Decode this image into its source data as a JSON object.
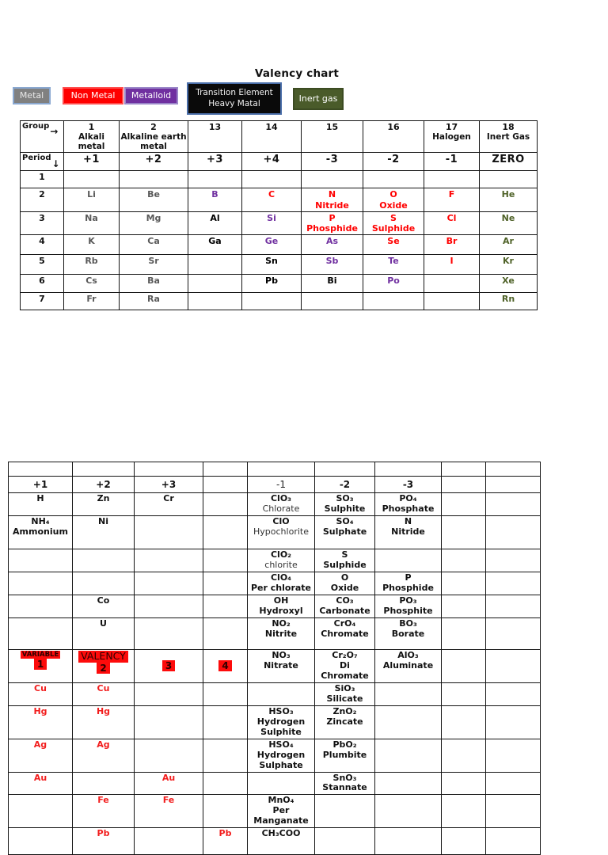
{
  "title": "Valency chart",
  "legend": [
    {
      "label": "Metal",
      "bg": "#808080",
      "fg": "#e8e8e8",
      "border": "#8aa8d0"
    },
    {
      "label": "Non Metal",
      "bg": "#ff0000",
      "fg": "#ffffff",
      "border": "#ff4d4d"
    },
    {
      "label": "Metalloid",
      "bg": "#7030a0",
      "fg": "#ffffff",
      "border": "#9a86c8"
    },
    {
      "label": "Transition Element\nHeavy Matal",
      "bg": "#0a0a0a",
      "fg": "#f2f2f2",
      "border": "#4a6ea9"
    },
    {
      "label": "Inert gas",
      "bg": "#4a5b2a",
      "fg": "#ffffff",
      "border": "#3c4b22"
    }
  ],
  "element_colors": {
    "metal": "#595959",
    "heavy": "#000000",
    "metalloid": "#7030a0",
    "nonmetal": "#ff0000",
    "inert": "#4f6228"
  },
  "table1": {
    "corner": {
      "group_label": "Group",
      "group_arrow": "→",
      "period_label": "Period",
      "period_arrow": "↓"
    },
    "groups": [
      {
        "num": "1",
        "sub": "Alkali metal",
        "valency": "+1"
      },
      {
        "num": "2",
        "sub": "Alkaline earth metal",
        "valency": "+2"
      },
      {
        "num": "13",
        "sub": "",
        "valency": "+3"
      },
      {
        "num": "14",
        "sub": "",
        "valency": "+4"
      },
      {
        "num": "15",
        "sub": "",
        "valency": "-3"
      },
      {
        "num": "16",
        "sub": "",
        "valency": "-2"
      },
      {
        "num": "17",
        "sub": "Halogen",
        "valency": "-1"
      },
      {
        "num": "18",
        "sub": "Inert Gas",
        "valency": "ZERO"
      }
    ],
    "periods": [
      {
        "period": "1",
        "cells": [
          null,
          null,
          null,
          null,
          null,
          null,
          null,
          null
        ]
      },
      {
        "period": "2",
        "cells": [
          {
            "t": "Li",
            "c": "metal"
          },
          {
            "t": "Be",
            "c": "metal"
          },
          {
            "t": "B",
            "c": "metalloid"
          },
          {
            "t": "C",
            "c": "nonmetal"
          },
          {
            "t": "N",
            "t2": "Nitride",
            "c": "nonmetal"
          },
          {
            "t": "O",
            "t2": "Oxide",
            "c": "nonmetal"
          },
          {
            "t": "F",
            "c": "nonmetal"
          },
          {
            "t": "He",
            "c": "inert"
          }
        ]
      },
      {
        "period": "3",
        "cells": [
          {
            "t": "Na",
            "c": "metal"
          },
          {
            "t": "Mg",
            "c": "metal"
          },
          {
            "t": "Al",
            "c": "heavy"
          },
          {
            "t": "Si",
            "c": "metalloid"
          },
          {
            "t": "P",
            "t2": "Phosphide",
            "c": "nonmetal"
          },
          {
            "t": "S",
            "t2": "Sulphide",
            "c": "nonmetal"
          },
          {
            "t": "Cl",
            "c": "nonmetal"
          },
          {
            "t": "Ne",
            "c": "inert"
          }
        ]
      },
      {
        "period": "4",
        "cells": [
          {
            "t": "K",
            "c": "metal"
          },
          {
            "t": "Ca",
            "c": "metal"
          },
          {
            "t": "Ga",
            "c": "heavy"
          },
          {
            "t": "Ge",
            "c": "metalloid"
          },
          {
            "t": "As",
            "c": "metalloid"
          },
          {
            "t": "Se",
            "c": "nonmetal"
          },
          {
            "t": "Br",
            "c": "nonmetal"
          },
          {
            "t": "Ar",
            "c": "inert"
          }
        ]
      },
      {
        "period": "5",
        "cells": [
          {
            "t": "Rb",
            "c": "metal"
          },
          {
            "t": "Sr",
            "c": "metal"
          },
          null,
          {
            "t": "Sn",
            "c": "heavy"
          },
          {
            "t": "Sb",
            "c": "metalloid"
          },
          {
            "t": "Te",
            "c": "metalloid"
          },
          {
            "t": "I",
            "c": "nonmetal"
          },
          {
            "t": "Kr",
            "c": "inert"
          }
        ]
      },
      {
        "period": "6",
        "cells": [
          {
            "t": "Cs",
            "c": "metal"
          },
          {
            "t": "Ba",
            "c": "metal"
          },
          null,
          {
            "t": "Pb",
            "c": "heavy"
          },
          {
            "t": "Bi",
            "c": "heavy"
          },
          {
            "t": "Po",
            "c": "metalloid"
          },
          null,
          {
            "t": "Xe",
            "c": "inert"
          }
        ]
      },
      {
        "period": "7",
        "cells": [
          {
            "t": "Fr",
            "c": "metal"
          },
          {
            "t": "Ra",
            "c": "metal"
          },
          null,
          null,
          null,
          null,
          null,
          {
            "t": "Rn",
            "c": "inert"
          }
        ]
      }
    ]
  },
  "table2": {
    "headers": [
      {
        "t": "+1",
        "bold": true
      },
      {
        "t": "+2",
        "bold": true
      },
      {
        "t": "+3",
        "bold": true
      },
      {
        "t": "",
        "bold": true
      },
      {
        "t": "-1",
        "bold": false
      },
      {
        "t": "-2",
        "bold": true
      },
      {
        "t": "-3",
        "bold": true
      },
      {
        "t": "",
        "bold": true
      },
      {
        "t": "",
        "bold": true
      }
    ],
    "rows": [
      [
        [
          [
            "H",
            "b"
          ]
        ],
        [
          [
            "Zn",
            "b"
          ]
        ],
        [
          [
            "Cr",
            "b"
          ]
        ],
        null,
        [
          [
            "ClO₃",
            "b"
          ],
          [
            "Chlorate",
            "r"
          ]
        ],
        [
          [
            "SO₃",
            "b"
          ],
          [
            "Sulphite",
            "b"
          ]
        ],
        [
          [
            "PO₄",
            "b"
          ],
          [
            "Phosphate",
            "b"
          ]
        ],
        null,
        null
      ],
      [
        [
          [
            "NH₄",
            "b"
          ],
          [
            "Ammonium",
            "b"
          ]
        ],
        [
          [
            "Ni",
            "b"
          ]
        ],
        null,
        null,
        [
          [
            "ClO",
            "b"
          ],
          [
            "Hypochlorite",
            "r"
          ]
        ],
        [
          [
            "SO₄",
            "b"
          ],
          [
            "Sulphate",
            "b"
          ]
        ],
        [
          [
            "N",
            "b"
          ],
          [
            "Nitride",
            "b"
          ]
        ],
        null,
        null
      ],
      [
        null,
        null,
        null,
        null,
        [
          [
            "ClO₂",
            "b"
          ],
          [
            "chlorite",
            "r"
          ]
        ],
        [
          [
            "S",
            "b"
          ],
          [
            "Sulphide",
            "b"
          ]
        ],
        null,
        null,
        null
      ],
      [
        null,
        null,
        null,
        null,
        [
          [
            "ClO₄",
            "b"
          ],
          [
            "Per chlorate",
            "b"
          ]
        ],
        [
          [
            "O",
            "b"
          ],
          [
            "Oxide",
            "b"
          ]
        ],
        [
          [
            "P",
            "b"
          ],
          [
            "Phosphide",
            "b"
          ]
        ],
        null,
        null
      ],
      [
        null,
        [
          [
            "Co",
            "b"
          ]
        ],
        null,
        null,
        [
          [
            "OH",
            "b"
          ],
          [
            "Hydroxyl",
            "b"
          ]
        ],
        [
          [
            "CO₃",
            "b"
          ],
          [
            "Carbonate",
            "b"
          ]
        ],
        [
          [
            "PO₃",
            "b"
          ],
          [
            "Phosphite",
            "b"
          ]
        ],
        null,
        null
      ],
      [
        null,
        [
          [
            "U",
            "b"
          ]
        ],
        null,
        null,
        [
          [
            "NO₂",
            "b"
          ],
          [
            "Nitrite",
            "b"
          ]
        ],
        [
          [
            "CrO₄",
            "b"
          ],
          [
            "Chromate",
            "b"
          ]
        ],
        [
          [
            "BO₃",
            "b"
          ],
          [
            "Borate",
            "b"
          ]
        ],
        null,
        null
      ],
      [
        [
          [
            "VARIABLE",
            "hs"
          ],
          [
            "1",
            "h"
          ]
        ],
        [
          [
            "VALENCY",
            "hv"
          ],
          [
            "2",
            "h"
          ]
        ],
        [
          [
            "3",
            "h"
          ]
        ],
        [
          [
            "4",
            "h"
          ]
        ],
        [
          [
            "NO₃",
            "b"
          ],
          [
            "Nitrate",
            "b"
          ]
        ],
        [
          [
            "Cr₂O₇",
            "b"
          ],
          [
            "Di",
            "b"
          ],
          [
            "Chromate",
            "b"
          ]
        ],
        [
          [
            "AlO₃",
            "b"
          ],
          [
            "Aluminate",
            "b"
          ]
        ],
        null,
        null
      ],
      [
        [
          [
            "Cu",
            "e"
          ]
        ],
        [
          [
            "Cu",
            "e"
          ]
        ],
        null,
        null,
        null,
        [
          [
            "SiO₃",
            "b"
          ],
          [
            "Silicate",
            "b"
          ]
        ],
        null,
        null,
        null
      ],
      [
        [
          [
            "Hg",
            "e"
          ]
        ],
        [
          [
            "Hg",
            "e"
          ]
        ],
        null,
        null,
        [
          [
            "HSO₃",
            "b"
          ],
          [
            "Hydrogen",
            "b"
          ],
          [
            "Sulphite",
            "b"
          ]
        ],
        [
          [
            "ZnO₂",
            "b"
          ],
          [
            "Zincate",
            "b"
          ]
        ],
        null,
        null,
        null
      ],
      [
        [
          [
            "Ag",
            "e"
          ]
        ],
        [
          [
            "Ag",
            "e"
          ]
        ],
        null,
        null,
        [
          [
            "HSO₄",
            "b"
          ],
          [
            "Hydrogen",
            "b"
          ],
          [
            "Sulphate",
            "b"
          ]
        ],
        [
          [
            "PbO₂",
            "b"
          ],
          [
            "Plumbite",
            "b"
          ]
        ],
        null,
        null,
        null
      ],
      [
        [
          [
            "Au",
            "e"
          ]
        ],
        null,
        [
          [
            "Au",
            "e"
          ]
        ],
        null,
        null,
        [
          [
            "SnO₃",
            "b"
          ],
          [
            "Stannate",
            "b"
          ]
        ],
        null,
        null,
        null
      ],
      [
        null,
        [
          [
            "Fe",
            "e"
          ]
        ],
        [
          [
            "Fe",
            "e"
          ]
        ],
        null,
        [
          [
            "MnO₄",
            "b"
          ],
          [
            "Per",
            "b"
          ],
          [
            "Manganate",
            "b"
          ]
        ],
        null,
        null,
        null,
        null
      ],
      [
        null,
        [
          [
            "Pb",
            "e"
          ]
        ],
        null,
        [
          [
            "Pb",
            "e"
          ]
        ],
        [
          [
            "CH₃COO",
            "b"
          ]
        ],
        null,
        null,
        null,
        null
      ]
    ]
  }
}
